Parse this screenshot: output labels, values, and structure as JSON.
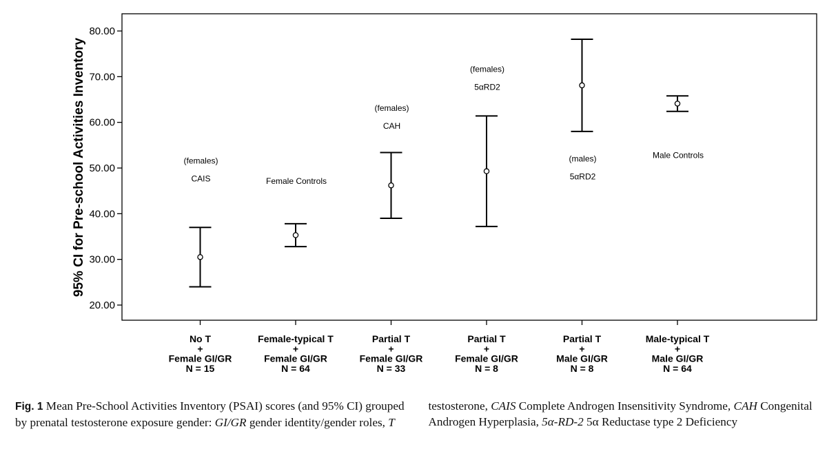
{
  "chart_data": {
    "type": "errorbar",
    "ylabel": "95% CI for Pre-school Activities Inventory",
    "ylim": [
      17,
      83
    ],
    "yticks": [
      "20.00",
      "30.00",
      "40.00",
      "50.00",
      "60.00",
      "70.00",
      "80.00"
    ],
    "categories": [
      {
        "lines": [
          "No T",
          "+",
          "Female GI/GR",
          "N = 15"
        ],
        "mean": 30.5,
        "lower": 24.0,
        "upper": 37.0,
        "annotation": [
          "CAIS",
          "(females)"
        ],
        "annotation_y": [
          47.7,
          51.6
        ]
      },
      {
        "lines": [
          "Female-typical T",
          "+",
          "Female GI/GR",
          "N = 64"
        ],
        "mean": 35.3,
        "lower": 32.8,
        "upper": 37.8,
        "annotation": [
          "Female Controls"
        ],
        "annotation_y": [
          47.1
        ]
      },
      {
        "lines": [
          "Partial T",
          "+",
          "Female GI/GR",
          "N = 33"
        ],
        "mean": 46.2,
        "lower": 39.0,
        "upper": 53.4,
        "annotation": [
          "CAH",
          "(females)"
        ],
        "annotation_y": [
          59.2,
          63.1
        ]
      },
      {
        "lines": [
          "Partial T",
          "+",
          "Female GI/GR",
          "N = 8"
        ],
        "mean": 49.3,
        "lower": 37.2,
        "upper": 61.4,
        "annotation": [
          "5αRD2",
          "(females)"
        ],
        "annotation_y": [
          67.7,
          71.6
        ]
      },
      {
        "lines": [
          "Partial T",
          "+",
          "Male GI/GR",
          "N = 8"
        ],
        "mean": 68.1,
        "lower": 58.0,
        "upper": 78.2,
        "annotation": [
          "5αRD2",
          "(males)"
        ],
        "annotation_y": [
          48.1,
          52.0
        ]
      },
      {
        "lines": [
          "Male-typical T",
          "+",
          "Male GI/GR",
          "N = 64"
        ],
        "mean": 64.1,
        "lower": 62.4,
        "upper": 65.8,
        "annotation": [
          "Male Controls"
        ],
        "annotation_y": [
          52.8
        ]
      }
    ]
  },
  "caption": {
    "label": "Fig. 1",
    "text": "Mean Pre-School Activities Inventory (PSAI) scores (and 95% CI) grouped by prenatal testosterone exposure gender: ",
    "parts": [
      {
        "t": "GI/GR",
        "i": true
      },
      {
        "t": " gender identity/gender roles, ",
        "i": false
      },
      {
        "t": "T",
        "i": true
      },
      {
        "t": " testosterone, ",
        "i": false
      },
      {
        "t": "CAIS",
        "i": true
      },
      {
        "t": " Complete Androgen Insensitivity Syndrome, ",
        "i": false
      },
      {
        "t": "CAH",
        "i": true
      },
      {
        "t": " Congenital Androgen Hyperplasia, ",
        "i": false
      },
      {
        "t": "5α-RD-2",
        "i": true
      },
      {
        "t": " 5α Reductase type 2 Deficiency",
        "i": false
      }
    ]
  }
}
